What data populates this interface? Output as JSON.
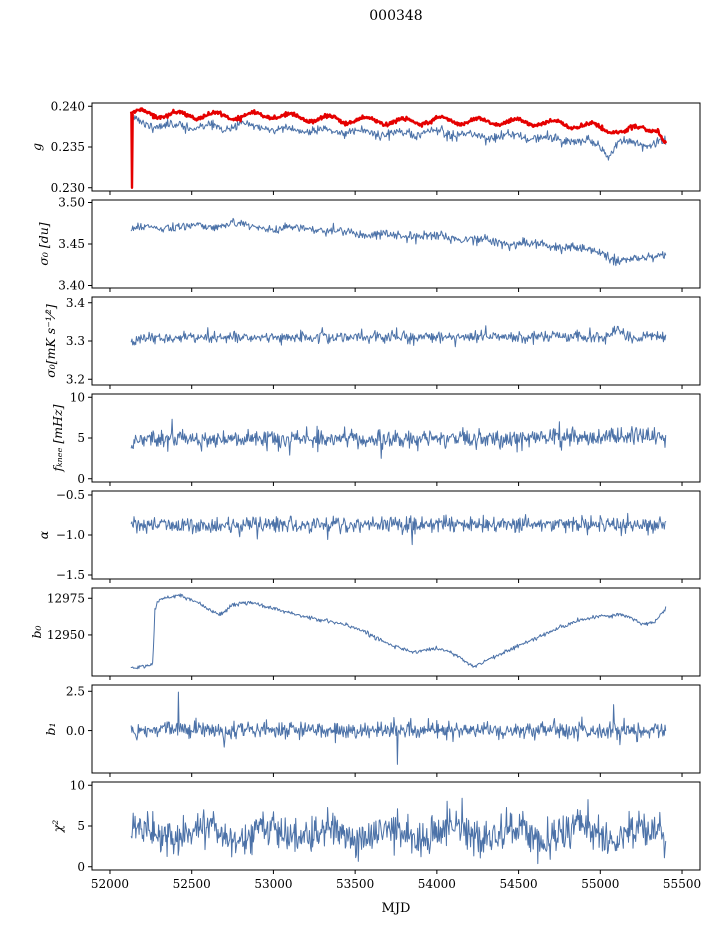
{
  "chart_data": {
    "type": "line",
    "title": "000348",
    "xlabel": "MJD",
    "xlim": [
      51890,
      55610
    ],
    "xticks": [
      52000,
      52500,
      53000,
      53500,
      54000,
      54500,
      55000,
      55500
    ],
    "xtick_labels": [
      "52000",
      "52500",
      "53000",
      "53500",
      "54000",
      "54500",
      "55000",
      "55500"
    ],
    "data_x_range": [
      52130,
      55400
    ],
    "colors": {
      "blue": "#4c72a8",
      "red": "#e50000",
      "spine": "#000000"
    },
    "legend": null,
    "grid": false,
    "panels": [
      {
        "name": "g",
        "ylabel": "g",
        "ylim": [
          0.2296,
          0.2404
        ],
        "yticks": [
          0.23,
          0.235,
          0.24
        ],
        "ytick_labels": [
          "0.230",
          "0.235",
          "0.240"
        ],
        "series": [
          {
            "name": "g-blue",
            "color": "#4c72a8",
            "lw": 1.0,
            "seed": 11,
            "n": 720,
            "noise": 0.00028,
            "wiggle": {
              "amp": 0.00025,
              "period": 230,
              "phase": 1.0
            },
            "trend": [
              [
                52130,
                0.2387
              ],
              [
                52200,
                0.2378
              ],
              [
                52400,
                0.2376
              ],
              [
                52700,
                0.2374
              ],
              [
                52800,
                0.2377
              ],
              [
                53000,
                0.2372
              ],
              [
                53300,
                0.237
              ],
              [
                53600,
                0.2368
              ],
              [
                53800,
                0.2366
              ],
              [
                54000,
                0.2368
              ],
              [
                54200,
                0.2364
              ],
              [
                54500,
                0.2363
              ],
              [
                54700,
                0.236
              ],
              [
                54900,
                0.2357
              ],
              [
                55000,
                0.2352
              ],
              [
                55050,
                0.234
              ],
              [
                55100,
                0.2352
              ],
              [
                55200,
                0.2356
              ],
              [
                55300,
                0.2352
              ],
              [
                55400,
                0.2354
              ]
            ]
          },
          {
            "name": "g-red",
            "color": "#e50000",
            "lw": 2.4,
            "seed": 7,
            "n": 900,
            "noise": 0.00012,
            "wiggle": {
              "amp": 0.0004,
              "period": 230,
              "phase": 0.0
            },
            "trend": [
              [
                52130,
                0.2392
              ],
              [
                52300,
                0.239
              ],
              [
                52700,
                0.2388
              ],
              [
                53000,
                0.2389
              ],
              [
                53200,
                0.2385
              ],
              [
                53500,
                0.2383
              ],
              [
                53800,
                0.2381
              ],
              [
                54000,
                0.2383
              ],
              [
                54300,
                0.2381
              ],
              [
                54600,
                0.238
              ],
              [
                54800,
                0.2378
              ],
              [
                55000,
                0.2374
              ],
              [
                55100,
                0.237
              ],
              [
                55150,
                0.2366
              ],
              [
                55200,
                0.2372
              ],
              [
                55250,
                0.2376
              ],
              [
                55300,
                0.2374
              ],
              [
                55350,
                0.237
              ],
              [
                55390,
                0.2352
              ]
            ]
          },
          {
            "name": "g-red-startspike",
            "color": "#e50000",
            "lw": 2.4,
            "points": [
              [
                52131,
                0.2392
              ],
              [
                52135,
                0.23
              ],
              [
                52139,
                0.239
              ]
            ]
          }
        ]
      },
      {
        "name": "sigma0_du",
        "ylabel": "σ₀ [du]",
        "ylim": [
          3.397,
          3.503
        ],
        "yticks": [
          3.4,
          3.45,
          3.5
        ],
        "ytick_labels": [
          "3.40",
          "3.45",
          "3.50"
        ],
        "series": [
          {
            "name": "sigma0-du",
            "color": "#4c72a8",
            "lw": 1.0,
            "seed": 21,
            "n": 720,
            "noise": 0.0028,
            "wiggle": {
              "amp": 0.002,
              "period": 300,
              "phase": 0.4
            },
            "trend": [
              [
                52130,
                3.468
              ],
              [
                52300,
                3.47
              ],
              [
                52600,
                3.472
              ],
              [
                52800,
                3.474
              ],
              [
                53000,
                3.468
              ],
              [
                53200,
                3.47
              ],
              [
                53400,
                3.464
              ],
              [
                53600,
                3.462
              ],
              [
                53800,
                3.46
              ],
              [
                54000,
                3.459
              ],
              [
                54200,
                3.456
              ],
              [
                54400,
                3.452
              ],
              [
                54600,
                3.45
              ],
              [
                54800,
                3.446
              ],
              [
                54900,
                3.443
              ],
              [
                55000,
                3.442
              ],
              [
                55100,
                3.43
              ],
              [
                55150,
                3.428
              ],
              [
                55200,
                3.432
              ],
              [
                55300,
                3.436
              ],
              [
                55400,
                3.44
              ]
            ]
          }
        ]
      },
      {
        "name": "sigma0_mk",
        "ylabel": "σ₀[mK s⁻¹⁄²]",
        "ylim": [
          3.185,
          3.415
        ],
        "yticks": [
          3.2,
          3.3,
          3.4
        ],
        "ytick_labels": [
          "3.2",
          "3.3",
          "3.4"
        ],
        "series": [
          {
            "name": "sigma0-mk",
            "color": "#4c72a8",
            "lw": 1.0,
            "seed": 31,
            "n": 720,
            "noise": 0.0075,
            "trend": [
              [
                52130,
                3.292
              ],
              [
                52180,
                3.305
              ],
              [
                52300,
                3.31
              ],
              [
                53000,
                3.31
              ],
              [
                54000,
                3.312
              ],
              [
                55000,
                3.31
              ],
              [
                55060,
                3.312
              ],
              [
                55110,
                3.338
              ],
              [
                55160,
                3.312
              ],
              [
                55400,
                3.31
              ]
            ],
            "spikes": [
              [
                52600,
                3.335
              ],
              [
                53300,
                3.335
              ],
              [
                54300,
                3.34
              ]
            ]
          }
        ]
      },
      {
        "name": "f_knee",
        "ylabel": "fₖₙₑₑ [mHz]",
        "ylim": [
          -0.4,
          10.4
        ],
        "yticks": [
          0,
          5,
          10
        ],
        "ytick_labels": [
          "0",
          "5",
          "10"
        ],
        "series": [
          {
            "name": "f-knee",
            "color": "#4c72a8",
            "lw": 1.0,
            "seed": 41,
            "n": 760,
            "noise": 0.55,
            "trend": [
              [
                52130,
                4.85
              ],
              [
                53000,
                4.9
              ],
              [
                54000,
                4.95
              ],
              [
                54800,
                5.05
              ],
              [
                55400,
                5.3
              ]
            ],
            "spikes": [
              [
                52380,
                7.3
              ],
              [
                53100,
                2.9
              ],
              [
                53660,
                2.5
              ],
              [
                54750,
                7.0
              ]
            ]
          }
        ]
      },
      {
        "name": "alpha",
        "ylabel": "α",
        "ylim": [
          -1.55,
          -0.45
        ],
        "yticks": [
          -1.5,
          -1.0,
          -0.5
        ],
        "ytick_labels": [
          "−1.5",
          "−1.0",
          "−0.5"
        ],
        "series": [
          {
            "name": "alpha",
            "color": "#4c72a8",
            "lw": 1.0,
            "seed": 51,
            "n": 760,
            "noise": 0.05,
            "trend": [
              [
                52130,
                -0.88
              ],
              [
                55400,
                -0.87
              ]
            ],
            "spikes": [
              [
                53850,
                -1.12
              ],
              [
                52900,
                -1.05
              ]
            ]
          }
        ]
      },
      {
        "name": "b0",
        "ylabel": "b₀",
        "ylim": [
          12922,
          12982
        ],
        "yticks": [
          12950,
          12975
        ],
        "ytick_labels": [
          "12950",
          "12975"
        ],
        "series": [
          {
            "name": "b0",
            "color": "#4c72a8",
            "lw": 1.0,
            "seed": 61,
            "n": 700,
            "noise": 0.7,
            "trend": [
              [
                52130,
                12928
              ],
              [
                52250,
                12929
              ],
              [
                52262,
                12930
              ],
              [
                52275,
                12968
              ],
              [
                52300,
                12974
              ],
              [
                52380,
                12976
              ],
              [
                52420,
                12977
              ],
              [
                52500,
                12974
              ],
              [
                52560,
                12971
              ],
              [
                52620,
                12966
              ],
              [
                52680,
                12964
              ],
              [
                52720,
                12968
              ],
              [
                52760,
                12971
              ],
              [
                52820,
                12972
              ],
              [
                52900,
                12971
              ],
              [
                53000,
                12968
              ],
              [
                53100,
                12965
              ],
              [
                53200,
                12962
              ],
              [
                53350,
                12959
              ],
              [
                53500,
                12955
              ],
              [
                53600,
                12950
              ],
              [
                53700,
                12944
              ],
              [
                53780,
                12941
              ],
              [
                53850,
                12938
              ],
              [
                53900,
                12939
              ],
              [
                53980,
                12941
              ],
              [
                54050,
                12940
              ],
              [
                54100,
                12937
              ],
              [
                54160,
                12933
              ],
              [
                54200,
                12930
              ],
              [
                54230,
                12929
              ],
              [
                54280,
                12931
              ],
              [
                54350,
                12935
              ],
              [
                54450,
                12940
              ],
              [
                54550,
                12945
              ],
              [
                54650,
                12950
              ],
              [
                54750,
                12955
              ],
              [
                54850,
                12959
              ],
              [
                54950,
                12962
              ],
              [
                55050,
                12963
              ],
              [
                55120,
                12964
              ],
              [
                55180,
                12962
              ],
              [
                55250,
                12958
              ],
              [
                55290,
                12957
              ],
              [
                55330,
                12959
              ],
              [
                55370,
                12964
              ],
              [
                55400,
                12968
              ]
            ]
          }
        ]
      },
      {
        "name": "b1",
        "ylabel": "b₁",
        "ylim": [
          -2.7,
          2.9
        ],
        "yticks": [
          0.0,
          2.5
        ],
        "ytick_labels": [
          "0.0",
          "2.5"
        ],
        "series": [
          {
            "name": "b1",
            "color": "#4c72a8",
            "lw": 1.0,
            "seed": 71,
            "n": 760,
            "noise": 0.27,
            "trend": [
              [
                52130,
                0.05
              ],
              [
                55400,
                0.0
              ]
            ],
            "spikes": [
              [
                52420,
                2.45
              ],
              [
                52700,
                -1.05
              ],
              [
                53760,
                -2.15
              ],
              [
                54100,
                -0.7
              ],
              [
                55080,
                1.65
              ],
              [
                55120,
                -0.9
              ]
            ]
          }
        ]
      },
      {
        "name": "chi2",
        "ylabel": "χ²",
        "ylim": [
          -0.4,
          10.4
        ],
        "yticks": [
          0,
          5,
          10
        ],
        "ytick_labels": [
          "0",
          "5",
          "10"
        ],
        "series": [
          {
            "name": "chi2",
            "color": "#4c72a8",
            "lw": 1.0,
            "seed": 81,
            "n": 820,
            "noise": 1.15,
            "clip_min": 0.3,
            "wiggle": {
              "amp": 0.9,
              "period": 380,
              "phase": 0.5
            },
            "trend": [
              [
                52130,
                4.1
              ],
              [
                53000,
                4.0
              ],
              [
                54000,
                4.1
              ],
              [
                55400,
                4.2
              ]
            ]
          }
        ]
      }
    ]
  }
}
